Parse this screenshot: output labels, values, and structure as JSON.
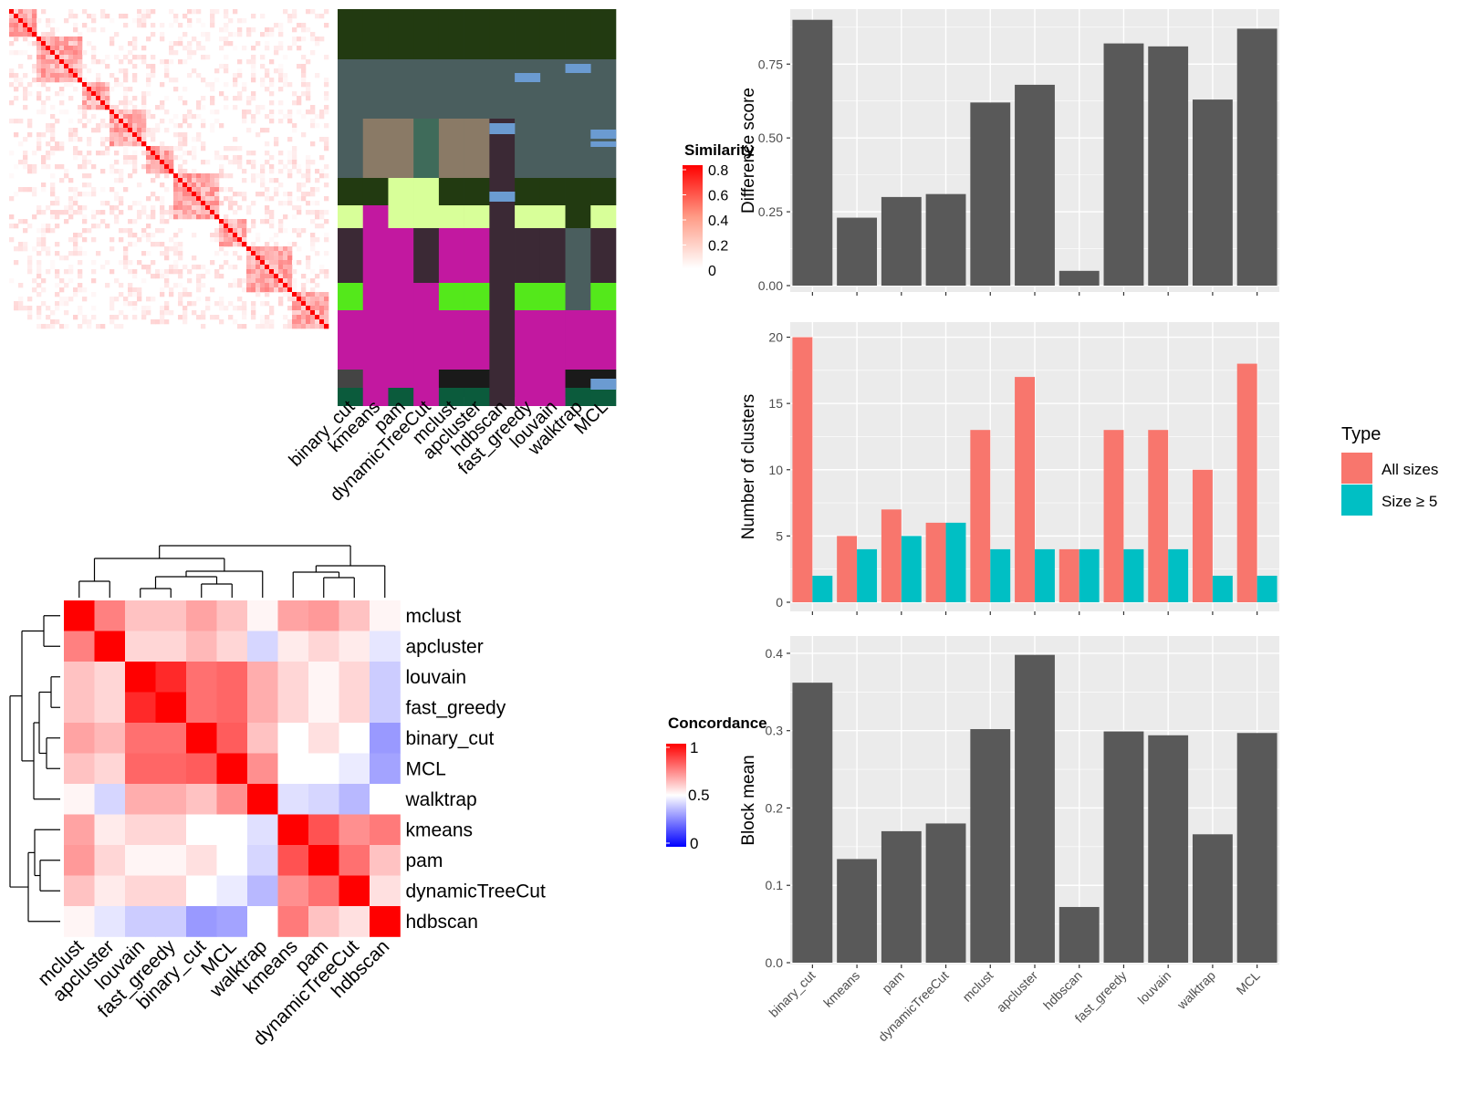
{
  "methods": [
    "binary_cut",
    "kmeans",
    "pam",
    "dynamicTreeCut",
    "mclust",
    "apcluster",
    "hdbscan",
    "fast_greedy",
    "louvain",
    "walktrap",
    "MCL"
  ],
  "similarity_legend": {
    "title": "Similarity",
    "ticks": [
      "0.8",
      "0.6",
      "0.4",
      "0.2",
      "0"
    ]
  },
  "concordance_legend": {
    "title": "Concordance",
    "ticks": [
      "1",
      "0.5",
      "0"
    ]
  },
  "concordance_order": [
    "mclust",
    "apcluster",
    "louvain",
    "fast_greedy",
    "binary_cut",
    "MCL",
    "walktrap",
    "kmeans",
    "pam",
    "dynamicTreeCut",
    "hdbscan"
  ],
  "concordance_matrix": [
    [
      1.0,
      0.75,
      0.62,
      0.62,
      0.68,
      0.62,
      0.52,
      0.68,
      0.7,
      0.62,
      0.52
    ],
    [
      0.75,
      1.0,
      0.58,
      0.58,
      0.64,
      0.58,
      0.42,
      0.54,
      0.58,
      0.54,
      0.45
    ],
    [
      0.62,
      0.58,
      1.0,
      0.92,
      0.78,
      0.8,
      0.66,
      0.58,
      0.52,
      0.58,
      0.4
    ],
    [
      0.62,
      0.58,
      0.92,
      1.0,
      0.78,
      0.8,
      0.66,
      0.58,
      0.52,
      0.58,
      0.4
    ],
    [
      0.68,
      0.64,
      0.78,
      0.78,
      1.0,
      0.82,
      0.62,
      0.5,
      0.56,
      0.5,
      0.3
    ],
    [
      0.62,
      0.58,
      0.8,
      0.8,
      0.82,
      1.0,
      0.72,
      0.5,
      0.5,
      0.46,
      0.32
    ],
    [
      0.52,
      0.42,
      0.66,
      0.66,
      0.62,
      0.72,
      1.0,
      0.44,
      0.42,
      0.36,
      0.5
    ],
    [
      0.68,
      0.54,
      0.58,
      0.58,
      0.5,
      0.5,
      0.44,
      1.0,
      0.84,
      0.72,
      0.76
    ],
    [
      0.7,
      0.58,
      0.52,
      0.52,
      0.56,
      0.5,
      0.42,
      0.84,
      1.0,
      0.78,
      0.62
    ],
    [
      0.62,
      0.54,
      0.58,
      0.58,
      0.5,
      0.46,
      0.36,
      0.72,
      0.78,
      1.0,
      0.56
    ],
    [
      0.52,
      0.45,
      0.4,
      0.4,
      0.3,
      0.32,
      0.5,
      0.76,
      0.62,
      0.56,
      1.0
    ]
  ],
  "legend": {
    "title": "Type",
    "all_label": "All sizes",
    "size5_label": "Size ≥ 5"
  },
  "colors": {
    "bar_dark": "#595959",
    "all_sizes": "#F8766D",
    "size5": "#00BFC4",
    "panel_bg": "#EBEBEB",
    "heat_red": "#FF0000",
    "heat_blue": "#0000FF"
  },
  "chart_data": [
    {
      "type": "bar",
      "ylabel": "Difference score",
      "categories": [
        "binary_cut",
        "kmeans",
        "pam",
        "dynamicTreeCut",
        "mclust",
        "apcluster",
        "hdbscan",
        "fast_greedy",
        "louvain",
        "walktrap",
        "MCL"
      ],
      "values": [
        0.9,
        0.23,
        0.3,
        0.31,
        0.62,
        0.68,
        0.05,
        0.82,
        0.81,
        0.63,
        0.87
      ],
      "ylim": [
        0,
        0.93
      ],
      "yticks": [
        "0.00",
        "0.25",
        "0.50",
        "0.75"
      ],
      "grid": true
    },
    {
      "type": "bar",
      "ylabel": "Number of clusters",
      "categories": [
        "binary_cut",
        "kmeans",
        "pam",
        "dynamicTreeCut",
        "mclust",
        "apcluster",
        "hdbscan",
        "fast_greedy",
        "louvain",
        "walktrap",
        "MCL"
      ],
      "series": [
        {
          "name": "All sizes",
          "values": [
            20,
            5,
            7,
            6,
            13,
            17,
            4,
            13,
            13,
            10,
            18
          ]
        },
        {
          "name": "Size ≥ 5",
          "values": [
            2,
            4,
            5,
            6,
            4,
            4,
            4,
            4,
            4,
            2,
            2
          ]
        }
      ],
      "ylim": [
        0,
        21
      ],
      "yticks": [
        "0",
        "5",
        "10",
        "15",
        "20"
      ],
      "legend_position": "right",
      "grid": true
    },
    {
      "type": "bar",
      "ylabel": "Block mean",
      "categories": [
        "binary_cut",
        "kmeans",
        "pam",
        "dynamicTreeCut",
        "mclust",
        "apcluster",
        "hdbscan",
        "fast_greedy",
        "louvain",
        "walktrap",
        "MCL"
      ],
      "values": [
        0.362,
        0.134,
        0.17,
        0.18,
        0.302,
        0.398,
        0.072,
        0.299,
        0.294,
        0.166,
        0.297
      ],
      "ylim": [
        0,
        0.42
      ],
      "yticks": [
        "0.0",
        "0.1",
        "0.2",
        "0.3",
        "0.4"
      ],
      "grid": true
    }
  ]
}
